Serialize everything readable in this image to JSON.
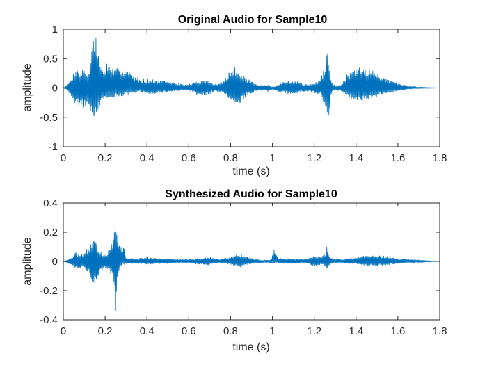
{
  "chart_data": [
    {
      "type": "line",
      "title": "Original Audio for Sample10",
      "xlabel": "time (s)",
      "ylabel": "amplitude",
      "xlim": [
        0,
        1.8
      ],
      "ylim": [
        -1,
        1
      ],
      "xticks": [
        "0",
        "0.2",
        "0.4",
        "0.6",
        "0.8",
        "1",
        "1.2",
        "1.4",
        "1.6",
        "1.8"
      ],
      "yticks": [
        "-1",
        "-0.5",
        "0",
        "0.5",
        "1"
      ],
      "grid": false,
      "line_color": "#0072BD",
      "envelope": {
        "x": [
          0,
          0.02,
          0.04,
          0.06,
          0.08,
          0.1,
          0.12,
          0.13,
          0.14,
          0.15,
          0.16,
          0.17,
          0.19,
          0.21,
          0.23,
          0.25,
          0.27,
          0.29,
          0.31,
          0.33,
          0.35,
          0.37,
          0.4,
          0.43,
          0.46,
          0.49,
          0.52,
          0.55,
          0.58,
          0.62,
          0.64,
          0.66,
          0.68,
          0.7,
          0.72,
          0.74,
          0.76,
          0.78,
          0.8,
          0.82,
          0.84,
          0.86,
          0.88,
          0.9,
          0.92,
          0.95,
          0.98,
          1.0,
          1.02,
          1.05,
          1.08,
          1.11,
          1.14,
          1.17,
          1.19,
          1.21,
          1.23,
          1.25,
          1.26,
          1.27,
          1.28,
          1.29,
          1.3,
          1.32,
          1.34,
          1.36,
          1.38,
          1.4,
          1.42,
          1.44,
          1.46,
          1.48,
          1.5,
          1.52,
          1.55,
          1.58,
          1.62,
          1.66,
          1.7,
          1.74,
          1.78,
          1.8
        ],
        "upper": [
          0,
          0.06,
          0.18,
          0.35,
          0.26,
          0.37,
          0.27,
          0.5,
          0.88,
          0.88,
          0.85,
          0.55,
          0.3,
          0.45,
          0.35,
          0.3,
          0.4,
          0.3,
          0.3,
          0.25,
          0.2,
          0.15,
          0.15,
          0.14,
          0.12,
          0.12,
          0.1,
          0.08,
          0.05,
          0.08,
          0.12,
          0.12,
          0.14,
          0.12,
          0.06,
          0.08,
          0.1,
          0.2,
          0.3,
          0.35,
          0.33,
          0.24,
          0.15,
          0.12,
          0.06,
          0.04,
          0.05,
          0.02,
          0.04,
          0.1,
          0.12,
          0.12,
          0.08,
          0.05,
          0.08,
          0.1,
          0.15,
          0.35,
          0.66,
          0.6,
          0.15,
          0.08,
          0.04,
          0.05,
          0.12,
          0.25,
          0.3,
          0.32,
          0.35,
          0.35,
          0.33,
          0.3,
          0.25,
          0.22,
          0.16,
          0.1,
          0.06,
          0.03,
          0.02,
          0.01,
          0.005,
          0
        ],
        "lower": [
          0,
          -0.04,
          -0.15,
          -0.3,
          -0.3,
          -0.33,
          -0.28,
          -0.4,
          -0.45,
          -0.5,
          -0.45,
          -0.35,
          -0.2,
          -0.18,
          -0.16,
          -0.15,
          -0.17,
          -0.12,
          -0.12,
          -0.1,
          -0.08,
          -0.06,
          -0.1,
          -0.1,
          -0.08,
          -0.08,
          -0.06,
          -0.05,
          -0.04,
          -0.06,
          -0.12,
          -0.14,
          -0.12,
          -0.1,
          -0.06,
          -0.07,
          -0.08,
          -0.15,
          -0.25,
          -0.3,
          -0.3,
          -0.2,
          -0.12,
          -0.1,
          -0.05,
          -0.04,
          -0.06,
          -0.03,
          -0.05,
          -0.08,
          -0.1,
          -0.1,
          -0.07,
          -0.05,
          -0.08,
          -0.1,
          -0.12,
          -0.3,
          -0.58,
          -0.5,
          -0.12,
          -0.06,
          -0.04,
          -0.05,
          -0.08,
          -0.15,
          -0.18,
          -0.22,
          -0.25,
          -0.22,
          -0.2,
          -0.18,
          -0.15,
          -0.12,
          -0.08,
          -0.06,
          -0.04,
          -0.02,
          -0.01,
          -0.008,
          -0.004,
          0
        ]
      }
    },
    {
      "type": "line",
      "title": "Synthesized Audio for Sample10",
      "xlabel": "time (s)",
      "ylabel": "amplitude",
      "xlim": [
        0,
        1.8
      ],
      "ylim": [
        -0.4,
        0.4
      ],
      "xticks": [
        "0",
        "0.2",
        "0.4",
        "0.6",
        "0.8",
        "1",
        "1.2",
        "1.4",
        "1.6",
        "1.8"
      ],
      "yticks": [
        "-0.4",
        "-0.2",
        "0",
        "0.2",
        "0.4"
      ],
      "grid": false,
      "line_color": "#0072BD",
      "envelope": {
        "x": [
          0,
          0.02,
          0.04,
          0.06,
          0.08,
          0.1,
          0.12,
          0.14,
          0.16,
          0.18,
          0.2,
          0.22,
          0.24,
          0.25,
          0.26,
          0.27,
          0.28,
          0.29,
          0.3,
          0.33,
          0.36,
          0.4,
          0.45,
          0.5,
          0.55,
          0.6,
          0.64,
          0.66,
          0.68,
          0.7,
          0.72,
          0.75,
          0.8,
          0.83,
          0.85,
          0.87,
          0.9,
          0.95,
          0.99,
          1.0,
          1.01,
          1.02,
          1.03,
          1.06,
          1.1,
          1.14,
          1.17,
          1.19,
          1.21,
          1.23,
          1.25,
          1.26,
          1.27,
          1.28,
          1.3,
          1.33,
          1.36,
          1.39,
          1.42,
          1.44,
          1.46,
          1.48,
          1.5,
          1.55,
          1.6,
          1.65,
          1.7,
          1.75,
          1.8
        ],
        "upper": [
          0,
          0.01,
          0.03,
          0.06,
          0.04,
          0.06,
          0.1,
          0.15,
          0.12,
          0.07,
          0.05,
          0.08,
          0.15,
          0.35,
          0.18,
          0.1,
          0.1,
          0.1,
          0.03,
          0.02,
          0.02,
          0.03,
          0.02,
          0.02,
          0.015,
          0.015,
          0.02,
          0.02,
          0.03,
          0.03,
          0.02,
          0.015,
          0.03,
          0.05,
          0.05,
          0.04,
          0.02,
          0.01,
          0.01,
          0.04,
          0.09,
          0.04,
          0.02,
          0.02,
          0.02,
          0.015,
          0.02,
          0.04,
          0.04,
          0.03,
          0.05,
          0.1,
          0.05,
          0.03,
          0.015,
          0.015,
          0.02,
          0.02,
          0.03,
          0.04,
          0.04,
          0.04,
          0.04,
          0.035,
          0.02,
          0.015,
          0.01,
          0.005,
          0
        ],
        "lower": [
          0,
          -0.01,
          -0.03,
          -0.06,
          -0.05,
          -0.05,
          -0.08,
          -0.15,
          -0.14,
          -0.06,
          -0.05,
          -0.08,
          -0.12,
          -0.36,
          -0.14,
          -0.05,
          -0.02,
          -0.02,
          -0.02,
          -0.015,
          -0.015,
          -0.02,
          -0.015,
          -0.015,
          -0.01,
          -0.01,
          -0.02,
          -0.02,
          -0.025,
          -0.025,
          -0.015,
          -0.01,
          -0.02,
          -0.04,
          -0.04,
          -0.03,
          -0.015,
          -0.01,
          -0.01,
          -0.01,
          -0.01,
          -0.01,
          -0.01,
          -0.015,
          -0.015,
          -0.01,
          -0.015,
          -0.03,
          -0.04,
          -0.02,
          -0.03,
          -0.06,
          -0.03,
          -0.02,
          -0.01,
          -0.01,
          -0.015,
          -0.015,
          -0.02,
          -0.03,
          -0.03,
          -0.03,
          -0.03,
          -0.025,
          -0.015,
          -0.01,
          -0.008,
          -0.004,
          0
        ]
      }
    }
  ]
}
